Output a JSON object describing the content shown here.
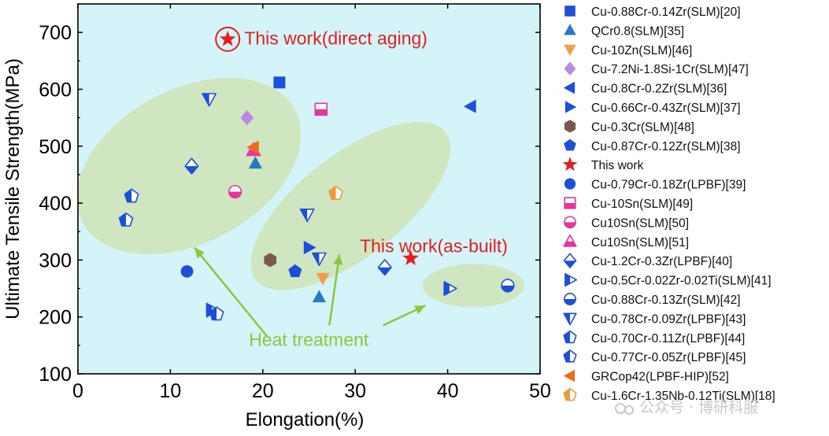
{
  "chart_data": {
    "type": "scatter",
    "xlabel": "Elongation(%)",
    "ylabel": "Ultimate Tensile Strength(MPa)",
    "xlim": [
      0,
      50
    ],
    "ylim": [
      100,
      750
    ],
    "xticks": [
      0,
      10,
      20,
      30,
      40,
      50
    ],
    "yticks": [
      100,
      200,
      300,
      400,
      500,
      600,
      700
    ],
    "grid": false,
    "legend_position": "right-outside",
    "colors": {
      "background": "#d4f4f9",
      "blue": "#1e4fd9",
      "red": "#e0201e",
      "magenta": "#e3379e",
      "orange": "#ec9a3c",
      "purple": "#b98ae0",
      "brown": "#7b574e",
      "green": "#8cc63f",
      "ellipse": "#cfe3b6"
    },
    "series": [
      {
        "name": "Cu-0.88Cr-0.14Zr(SLM)[20]",
        "marker": "square",
        "color": "#1e4fd9",
        "points": [
          [
            21.8,
            612
          ]
        ]
      },
      {
        "name": "QCr0.8(SLM)[35]",
        "marker": "triangle-up",
        "color": "#2878c8",
        "points": [
          [
            19.2,
            470
          ],
          [
            26.1,
            235
          ]
        ]
      },
      {
        "name": "Cu-10Zn(SLM)[46]",
        "marker": "triangle-down",
        "color": "#f0a04b",
        "points": [
          [
            26.5,
            268
          ]
        ]
      },
      {
        "name": "Cu-7.2Ni-1.8Si-1Cr(SLM)[47]",
        "marker": "diamond",
        "color": "#b98ae0",
        "points": [
          [
            18.3,
            550
          ]
        ]
      },
      {
        "name": "Cu-0.8Cr-0.2Zr(SLM)[36]",
        "marker": "triangle-left",
        "color": "#1e4fd9",
        "points": [
          [
            42.5,
            570
          ]
        ]
      },
      {
        "name": "Cu-0.66Cr-0.43Zr(SLM)[37]",
        "marker": "triangle-right",
        "color": "#1e4fd9",
        "points": [
          [
            25.0,
            322
          ]
        ]
      },
      {
        "name": "Cu-0.3Cr(SLM)[48]",
        "marker": "hexagon",
        "color": "#7b574e",
        "points": [
          [
            20.8,
            300
          ]
        ]
      },
      {
        "name": "Cu-0.87Cr-0.12Zr(SLM)[38]",
        "marker": "pentagon",
        "color": "#1e4fd9",
        "points": [
          [
            23.5,
            280
          ]
        ]
      },
      {
        "name": "This work",
        "marker": "star",
        "color": "#e0201e",
        "points": [
          [
            36.0,
            303
          ],
          [
            16.2,
            688
          ]
        ]
      },
      {
        "name": "Cu-0.79Cr-0.18Zr(LPBF)[39]",
        "marker": "circle",
        "color": "#1e4fd9",
        "points": [
          [
            11.8,
            280
          ]
        ]
      },
      {
        "name": "Cu-10Sn(SLM)[49]",
        "marker": "square-half",
        "color": "#e3379e",
        "points": [
          [
            26.3,
            565
          ]
        ]
      },
      {
        "name": "Cu10Sn(SLM)[50]",
        "marker": "circle-half",
        "color": "#e3379e",
        "points": [
          [
            17.0,
            420
          ]
        ]
      },
      {
        "name": "Cu10Sn(SLM)[51]",
        "marker": "triangle-up-half",
        "color": "#e3379e",
        "points": [
          [
            19.0,
            493
          ]
        ]
      },
      {
        "name": "Cu-1.2Cr-0.3Zr(LPBF)[40]",
        "marker": "diamond-half",
        "color": "#1e4fd9",
        "points": [
          [
            12.3,
            465
          ],
          [
            33.2,
            287
          ]
        ]
      },
      {
        "name": "Cu-0.5Cr-0.02Zr-0.02Ti(SLM)[41]",
        "marker": "triangle-right-half",
        "color": "#1e4fd9",
        "points": [
          [
            14.5,
            212
          ],
          [
            40.2,
            250
          ]
        ]
      },
      {
        "name": "Cu-0.88Cr-0.13Zr(SLM)[42]",
        "marker": "circle-half",
        "color": "#1e4fd9",
        "points": [
          [
            46.5,
            255
          ]
        ]
      },
      {
        "name": "Cu-0.78Cr-0.09Zr(LPBF)[43]",
        "marker": "triangle-down-half",
        "color": "#1e4fd9",
        "points": [
          [
            14.2,
            583
          ],
          [
            24.8,
            380
          ],
          [
            26.1,
            303
          ]
        ]
      },
      {
        "name": "Cu-0.70Cr-0.11Zr(LPBF)[44]",
        "marker": "pentagon-half",
        "color": "#1e4fd9",
        "points": [
          [
            5.2,
            370
          ]
        ]
      },
      {
        "name": "Cu-0.77Cr-0.05Zr(LPBF)[45]",
        "marker": "pentagon-half",
        "color": "#1e4fd9",
        "points": [
          [
            5.8,
            412
          ],
          [
            15.0,
            205
          ]
        ]
      },
      {
        "name": "GRCop42(LPBF-HIP)[52]",
        "marker": "triangle-left",
        "color": "#ec6c1e",
        "points": [
          [
            19.0,
            498
          ]
        ]
      },
      {
        "name": "Cu-1.6Cr-1.35Nb-0.12Ti(SLM)[18]",
        "marker": "pentagon-half",
        "color": "#ec9a3c",
        "points": [
          [
            27.9,
            417
          ]
        ]
      }
    ],
    "annotations": [
      {
        "text": "This work(direct aging)",
        "color": "red",
        "anchor": [
          18.0,
          690
        ]
      },
      {
        "text": "This work(as-built)",
        "color": "red",
        "anchor": [
          30.5,
          325
        ]
      },
      {
        "text": "Heat treatment",
        "color": "green",
        "anchor": [
          18.5,
          160
        ]
      }
    ],
    "regions": [
      {
        "label": "cluster-left",
        "center": [
          12.0,
          465
        ],
        "rx": 13.0,
        "ry": 135
      },
      {
        "label": "cluster-middle",
        "center": [
          29.5,
          395
        ],
        "rx": 13.0,
        "ry": 90
      },
      {
        "label": "cluster-right",
        "center": [
          42.8,
          255
        ],
        "rx": 5.5,
        "ry": 38
      }
    ],
    "arrows": [
      {
        "from": [
          20.5,
          165
        ],
        "to": [
          12.6,
          322
        ]
      },
      {
        "from": [
          27.2,
          185
        ],
        "to": [
          28.3,
          310
        ]
      },
      {
        "from": [
          33.0,
          185
        ],
        "to": [
          37.6,
          220
        ]
      }
    ]
  },
  "watermark": "公众号 · 博研科服"
}
